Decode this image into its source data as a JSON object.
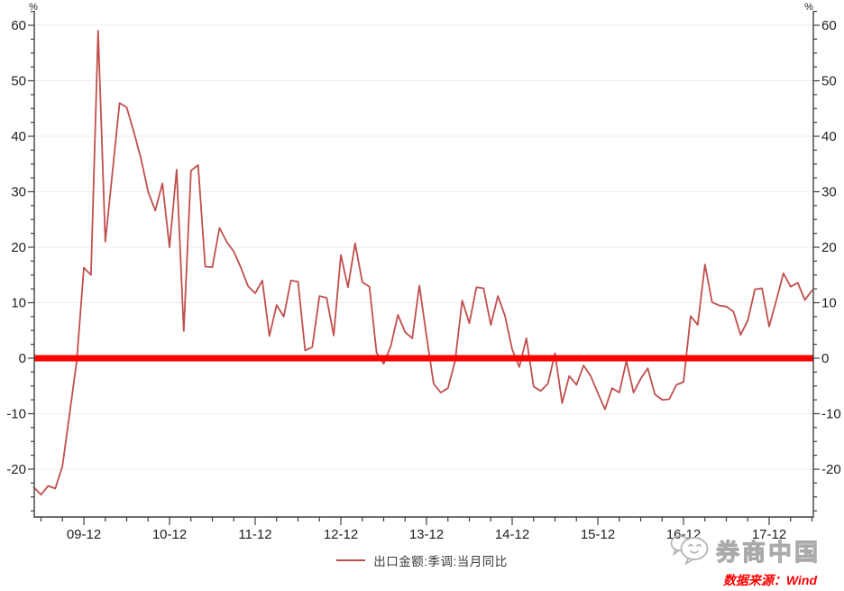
{
  "chart_data": {
    "type": "line",
    "title": "",
    "y_unit_left": "%",
    "y_unit_right": "%",
    "ylim": [
      -28.5,
      63.5
    ],
    "y_ticks": [
      -20,
      -10,
      0,
      10,
      20,
      30,
      40,
      50,
      60
    ],
    "y_minor_step": 2.5,
    "grid": "horizontal-major-light",
    "legend_position": "bottom-center",
    "x_tick_labels": [
      "09-12",
      "10-12",
      "11-12",
      "12-12",
      "13-12",
      "14-12",
      "15-12",
      "16-12",
      "17-12"
    ],
    "x_tick_month_indices": [
      7,
      19,
      31,
      43,
      55,
      67,
      79,
      91,
      103
    ],
    "x_minor_tick": "quarterly",
    "zero_line": {
      "value": 0,
      "color": "#FE0000",
      "width": 7
    },
    "series": [
      {
        "name": "出口金额:季调:当月同比",
        "color": "#C0504D",
        "start_month": "2009-05",
        "end_month": "2018-06",
        "frequency": "monthly",
        "values": [
          -23.3,
          -24.6,
          -23.0,
          -23.5,
          -19.5,
          -10.0,
          -0.5,
          16.3,
          15.0,
          59.0,
          21.0,
          33.5,
          46.0,
          45.2,
          40.8,
          36.0,
          30.0,
          26.6,
          31.5,
          20.0,
          34.0,
          4.9,
          33.8,
          34.8,
          16.5,
          16.4,
          23.5,
          21.0,
          19.2,
          16.3,
          13.0,
          11.7,
          14.0,
          4.0,
          9.6,
          7.5,
          14.0,
          13.8,
          1.4,
          2.0,
          11.2,
          10.9,
          4.1,
          18.6,
          12.8,
          20.7,
          13.7,
          12.9,
          1.0,
          -1.0,
          2.2,
          7.8,
          4.7,
          3.6,
          13.1,
          4.0,
          -4.6,
          -6.2,
          -5.4,
          -0.5,
          10.4,
          6.3,
          12.8,
          12.6,
          6.0,
          11.2,
          7.6,
          1.6,
          -1.6,
          3.6,
          -5.1,
          -5.9,
          -4.6,
          0.9,
          -8.1,
          -3.2,
          -4.8,
          -1.3,
          -3.2,
          -6.3,
          -9.2,
          -5.4,
          -6.2,
          -0.5,
          -6.2,
          -3.7,
          -1.8,
          -6.5,
          -7.5,
          -7.4,
          -4.8,
          -4.3,
          7.6,
          6.0,
          16.9,
          10.1,
          9.5,
          9.3,
          8.4,
          4.2,
          6.8,
          12.4,
          12.6,
          5.7,
          10.4,
          15.3,
          12.9,
          13.6,
          10.5,
          12.2
        ]
      }
    ]
  },
  "legend": {
    "label": "出口金额:季调:当月同比",
    "swatch_color": "#C0504D"
  },
  "footer": {
    "brand": "券商中国",
    "source": "数据来源：Wind"
  }
}
